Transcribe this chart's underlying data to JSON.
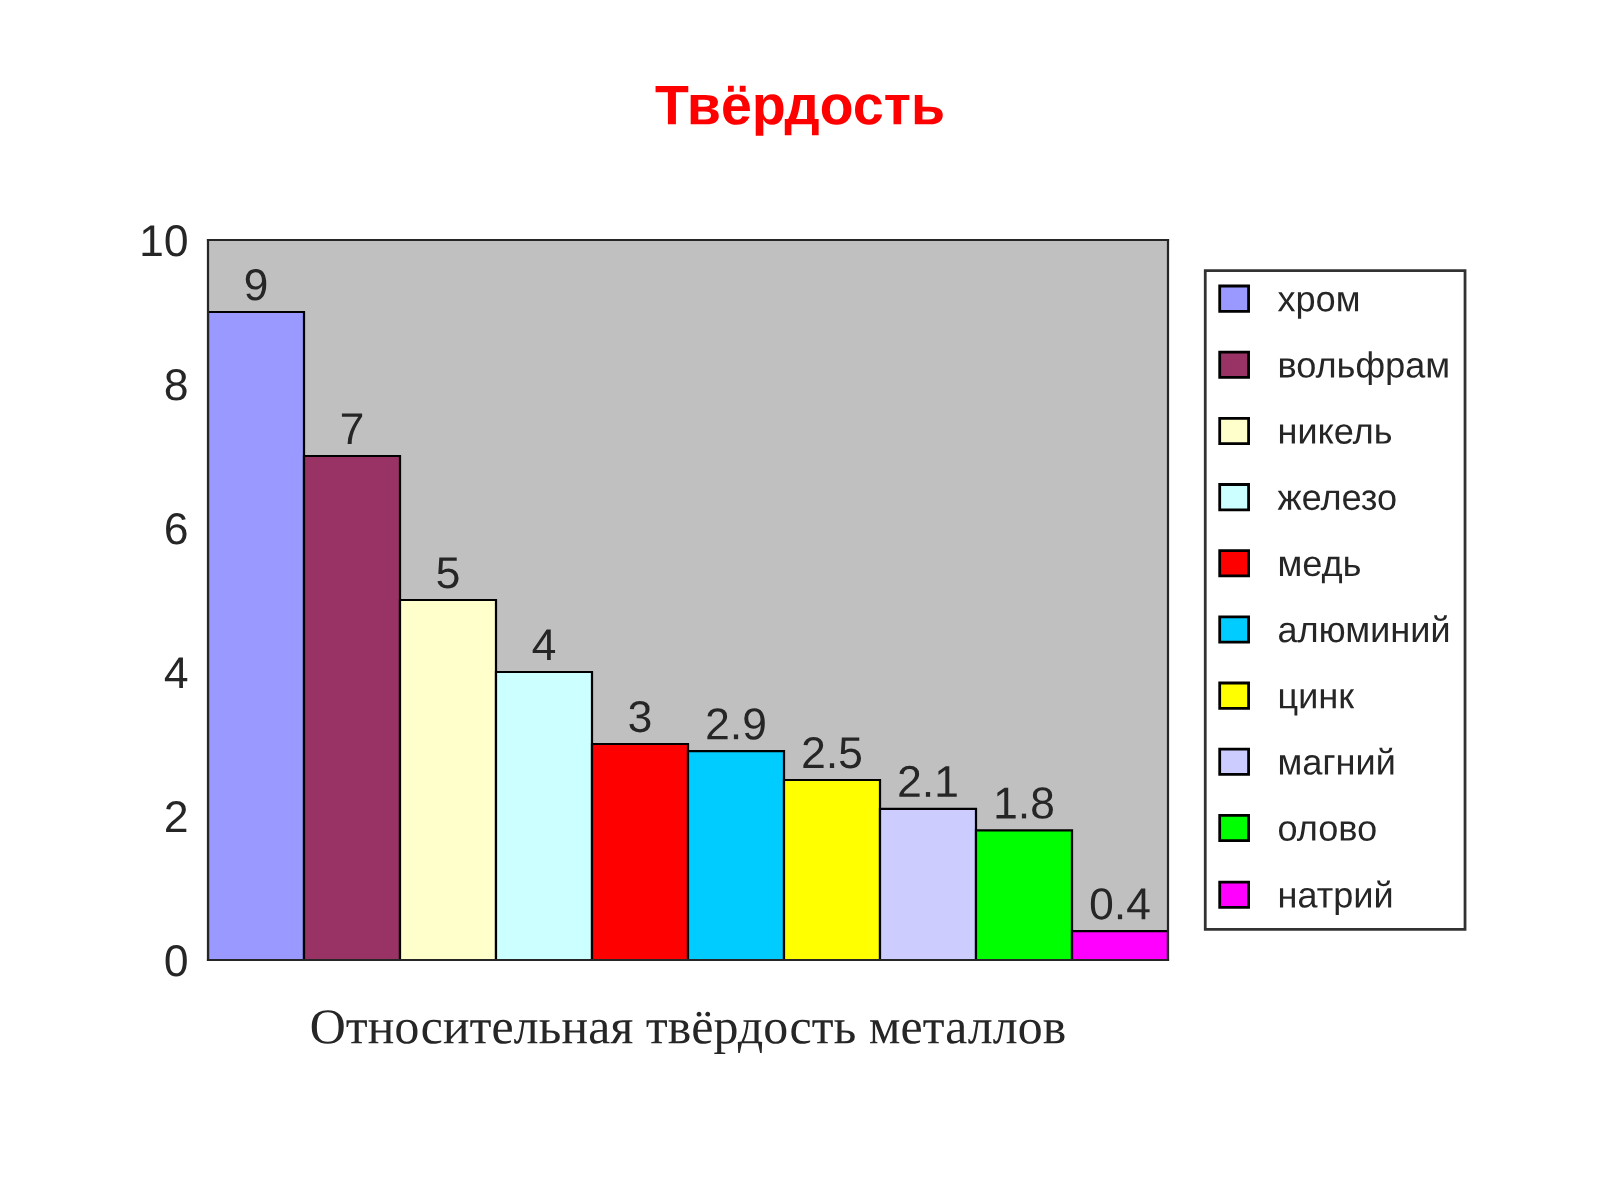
{
  "chart_data": {
    "type": "bar",
    "title": "Твёрдость",
    "xlabel": "Относительная твёрдость металлов",
    "categories": [
      null,
      null,
      null,
      null,
      null,
      null,
      null,
      null,
      null,
      null
    ],
    "series": [
      {
        "name": "хром",
        "color": "#9999ff",
        "values": [
          9,
          null,
          null,
          null,
          null,
          null,
          null,
          null,
          null,
          null
        ]
      },
      {
        "name": "вольфрам",
        "color": "#993366",
        "values": [
          null,
          7,
          null,
          null,
          null,
          null,
          null,
          null,
          null,
          null
        ]
      },
      {
        "name": "никель",
        "color": "#ffffcc",
        "values": [
          null,
          null,
          5,
          null,
          null,
          null,
          null,
          null,
          null,
          null
        ]
      },
      {
        "name": "железо",
        "color": "#ccffff",
        "values": [
          null,
          null,
          null,
          4,
          null,
          null,
          null,
          null,
          null,
          null
        ]
      },
      {
        "name": "медь",
        "color": "#ff0000",
        "values": [
          null,
          null,
          null,
          null,
          3,
          null,
          null,
          null,
          null,
          null
        ]
      },
      {
        "name": "алюминий",
        "color": "#00ccff",
        "values": [
          null,
          null,
          null,
          null,
          null,
          2.9,
          null,
          null,
          null,
          null
        ]
      },
      {
        "name": "цинк",
        "color": "#ffff00",
        "values": [
          null,
          null,
          null,
          null,
          null,
          null,
          2.5,
          null,
          null,
          null
        ]
      },
      {
        "name": "магний",
        "color": "#ccccff",
        "values": [
          null,
          null,
          null,
          null,
          null,
          null,
          null,
          2.1,
          null,
          null
        ]
      },
      {
        "name": "олово",
        "color": "#00ff00",
        "values": [
          null,
          null,
          null,
          null,
          null,
          null,
          null,
          null,
          1.8,
          null
        ]
      },
      {
        "name": "натрий",
        "color": "#ff00ff",
        "values": [
          null,
          null,
          null,
          null,
          null,
          null,
          null,
          null,
          null,
          0.4
        ]
      }
    ],
    "ylim": [
      0,
      10
    ],
    "yticks": [
      0,
      2,
      4,
      6,
      8,
      10
    ],
    "grid": false,
    "legend": "right",
    "data_labels": true,
    "tick_labels": "y"
  }
}
